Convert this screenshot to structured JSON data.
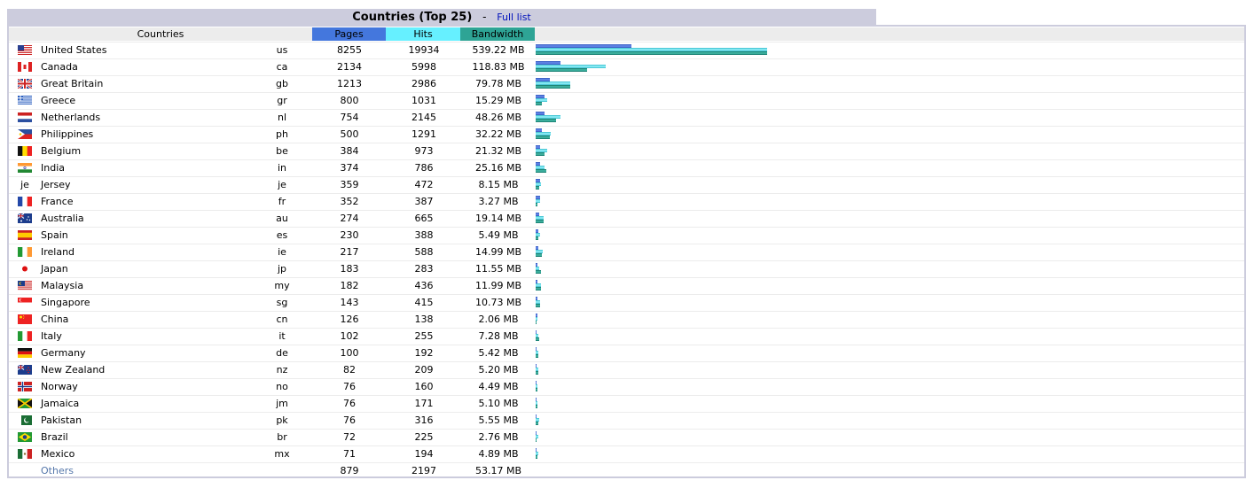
{
  "title": "Countries (Top 25)",
  "dash": "-",
  "full_list_link": "Full list",
  "headers": {
    "countries": "Countries",
    "pages": "Pages",
    "hits": "Hits",
    "bandwidth": "Bandwidth"
  },
  "colors": {
    "pages": "#4477dd",
    "hits": "#66f0ff",
    "bandwidth": "#2ea495",
    "title_bg": "#ccccdd"
  },
  "max": {
    "pages": 8255,
    "hits": 19934,
    "bandwidth_mb": 539.22
  },
  "rows": [
    {
      "name": "United States",
      "code": "us",
      "pages": 8255,
      "hits": 19934,
      "bandwidth": "539.22 MB",
      "bw_mb": 539.22,
      "flag": "us-flag-icon"
    },
    {
      "name": "Canada",
      "code": "ca",
      "pages": 2134,
      "hits": 5998,
      "bandwidth": "118.83 MB",
      "bw_mb": 118.83,
      "flag": "ca-flag-icon"
    },
    {
      "name": "Great Britain",
      "code": "gb",
      "pages": 1213,
      "hits": 2986,
      "bandwidth": "79.78 MB",
      "bw_mb": 79.78,
      "flag": "gb-flag-icon"
    },
    {
      "name": "Greece",
      "code": "gr",
      "pages": 800,
      "hits": 1031,
      "bandwidth": "15.29 MB",
      "bw_mb": 15.29,
      "flag": "gr-flag-icon"
    },
    {
      "name": "Netherlands",
      "code": "nl",
      "pages": 754,
      "hits": 2145,
      "bandwidth": "48.26 MB",
      "bw_mb": 48.26,
      "flag": "nl-flag-icon"
    },
    {
      "name": "Philippines",
      "code": "ph",
      "pages": 500,
      "hits": 1291,
      "bandwidth": "32.22 MB",
      "bw_mb": 32.22,
      "flag": "ph-flag-icon"
    },
    {
      "name": "Belgium",
      "code": "be",
      "pages": 384,
      "hits": 973,
      "bandwidth": "21.32 MB",
      "bw_mb": 21.32,
      "flag": "be-flag-icon"
    },
    {
      "name": "India",
      "code": "in",
      "pages": 374,
      "hits": 786,
      "bandwidth": "25.16 MB",
      "bw_mb": 25.16,
      "flag": "in-flag-icon"
    },
    {
      "name": "Jersey",
      "code": "je",
      "pages": 359,
      "hits": 472,
      "bandwidth": "8.15 MB",
      "bw_mb": 8.15,
      "flag": "je-flag-icon",
      "flag_text": "je"
    },
    {
      "name": "France",
      "code": "fr",
      "pages": 352,
      "hits": 387,
      "bandwidth": "3.27 MB",
      "bw_mb": 3.27,
      "flag": "fr-flag-icon"
    },
    {
      "name": "Australia",
      "code": "au",
      "pages": 274,
      "hits": 665,
      "bandwidth": "19.14 MB",
      "bw_mb": 19.14,
      "flag": "au-flag-icon"
    },
    {
      "name": "Spain",
      "code": "es",
      "pages": 230,
      "hits": 388,
      "bandwidth": "5.49 MB",
      "bw_mb": 5.49,
      "flag": "es-flag-icon"
    },
    {
      "name": "Ireland",
      "code": "ie",
      "pages": 217,
      "hits": 588,
      "bandwidth": "14.99 MB",
      "bw_mb": 14.99,
      "flag": "ie-flag-icon"
    },
    {
      "name": "Japan",
      "code": "jp",
      "pages": 183,
      "hits": 283,
      "bandwidth": "11.55 MB",
      "bw_mb": 11.55,
      "flag": "jp-flag-icon"
    },
    {
      "name": "Malaysia",
      "code": "my",
      "pages": 182,
      "hits": 436,
      "bandwidth": "11.99 MB",
      "bw_mb": 11.99,
      "flag": "my-flag-icon"
    },
    {
      "name": "Singapore",
      "code": "sg",
      "pages": 143,
      "hits": 415,
      "bandwidth": "10.73 MB",
      "bw_mb": 10.73,
      "flag": "sg-flag-icon"
    },
    {
      "name": "China",
      "code": "cn",
      "pages": 126,
      "hits": 138,
      "bandwidth": "2.06 MB",
      "bw_mb": 2.06,
      "flag": "cn-flag-icon"
    },
    {
      "name": "Italy",
      "code": "it",
      "pages": 102,
      "hits": 255,
      "bandwidth": "7.28 MB",
      "bw_mb": 7.28,
      "flag": "it-flag-icon"
    },
    {
      "name": "Germany",
      "code": "de",
      "pages": 100,
      "hits": 192,
      "bandwidth": "5.42 MB",
      "bw_mb": 5.42,
      "flag": "de-flag-icon"
    },
    {
      "name": "New Zealand",
      "code": "nz",
      "pages": 82,
      "hits": 209,
      "bandwidth": "5.20 MB",
      "bw_mb": 5.2,
      "flag": "nz-flag-icon"
    },
    {
      "name": "Norway",
      "code": "no",
      "pages": 76,
      "hits": 160,
      "bandwidth": "4.49 MB",
      "bw_mb": 4.49,
      "flag": "no-flag-icon"
    },
    {
      "name": "Jamaica",
      "code": "jm",
      "pages": 76,
      "hits": 171,
      "bandwidth": "5.10 MB",
      "bw_mb": 5.1,
      "flag": "jm-flag-icon"
    },
    {
      "name": "Pakistan",
      "code": "pk",
      "pages": 76,
      "hits": 316,
      "bandwidth": "5.55 MB",
      "bw_mb": 5.55,
      "flag": "pk-flag-icon"
    },
    {
      "name": "Brazil",
      "code": "br",
      "pages": 72,
      "hits": 225,
      "bandwidth": "2.76 MB",
      "bw_mb": 2.76,
      "flag": "br-flag-icon"
    },
    {
      "name": "Mexico",
      "code": "mx",
      "pages": 71,
      "hits": 194,
      "bandwidth": "4.89 MB",
      "bw_mb": 4.89,
      "flag": "mx-flag-icon"
    }
  ],
  "others": {
    "name": "Others",
    "pages": "879",
    "hits": "2197",
    "bandwidth": "53.17 MB"
  }
}
